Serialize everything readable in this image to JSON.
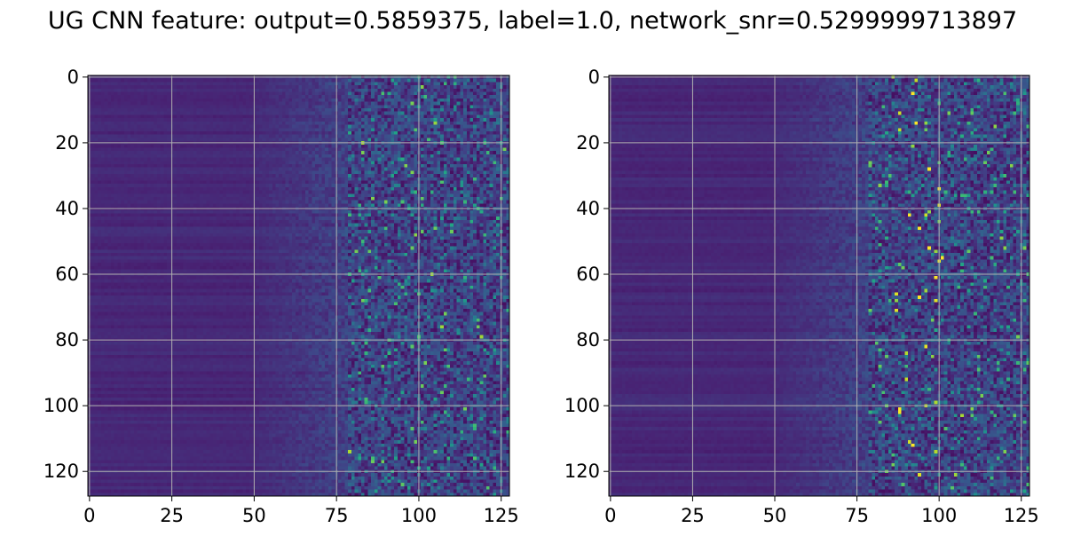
{
  "chart_data": {
    "type": "heatmap",
    "title": "UG CNN feature: output=0.5859375, label=1.0, network_snr=0.5299999713897",
    "colormap": "viridis",
    "grid": true,
    "panels": [
      {
        "rows": 128,
        "cols": 128,
        "xlim": [
          0,
          127
        ],
        "ylim": [
          127,
          0
        ],
        "xticks": [
          "0",
          "25",
          "50",
          "75",
          "100",
          "125"
        ],
        "yticks": [
          "0",
          "20",
          "40",
          "60",
          "80",
          "100",
          "120"
        ]
      },
      {
        "rows": 128,
        "cols": 128,
        "xlim": [
          0,
          127
        ],
        "ylim": [
          127,
          0
        ],
        "xticks": [
          "0",
          "25",
          "50",
          "75",
          "100",
          "125"
        ],
        "yticks": [
          "0",
          "20",
          "40",
          "60",
          "80",
          "100",
          "120"
        ]
      }
    ]
  }
}
